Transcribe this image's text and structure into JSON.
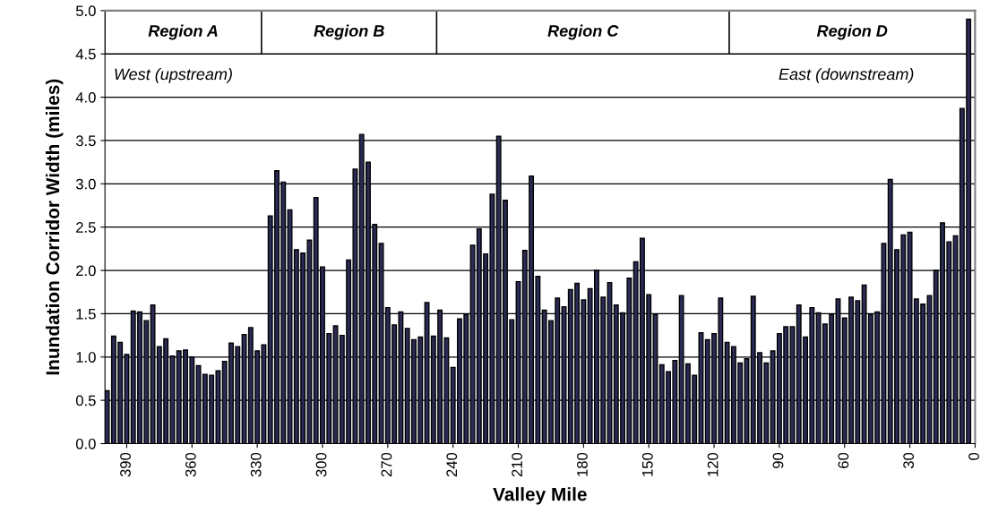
{
  "chart_data": {
    "type": "bar",
    "xlabel": "Valley Mile",
    "ylabel": "Inundation Corridor Width (miles)",
    "color": "#2b2b55",
    "x": [
      399,
      396,
      393,
      390,
      387,
      384,
      381,
      378,
      375,
      372,
      369,
      366,
      363,
      360,
      357,
      354,
      351,
      348,
      345,
      342,
      339,
      336,
      333,
      330,
      327,
      324,
      321,
      318,
      315,
      312,
      309,
      306,
      303,
      300,
      297,
      294,
      291,
      288,
      285,
      282,
      279,
      276,
      273,
      270,
      267,
      264,
      261,
      258,
      255,
      252,
      249,
      246,
      243,
      240,
      237,
      234,
      231,
      228,
      225,
      222,
      219,
      216,
      213,
      210,
      207,
      204,
      201,
      198,
      195,
      192,
      189,
      186,
      183,
      180,
      177,
      174,
      171,
      168,
      165,
      162,
      159,
      156,
      153,
      150,
      147,
      144,
      141,
      138,
      135,
      132,
      129,
      126,
      123,
      120,
      117,
      114,
      111,
      108,
      105,
      102,
      99,
      96,
      93,
      90,
      87,
      84,
      81,
      78,
      75,
      72,
      69,
      66,
      63,
      60,
      57,
      54,
      51,
      48,
      45,
      42,
      39,
      36,
      33,
      30,
      27,
      24,
      21,
      18,
      15,
      12,
      9,
      6,
      3
    ],
    "values": [
      0.61,
      1.24,
      1.17,
      1.03,
      1.53,
      1.52,
      1.42,
      1.6,
      1.12,
      1.21,
      1.01,
      1.07,
      1.08,
      1.0,
      0.9,
      0.8,
      0.79,
      0.84,
      0.95,
      1.16,
      1.12,
      1.26,
      1.34,
      1.07,
      1.14,
      2.63,
      3.15,
      3.02,
      2.7,
      2.24,
      2.2,
      2.35,
      2.84,
      2.04,
      1.27,
      1.36,
      1.25,
      2.12,
      3.17,
      3.57,
      3.25,
      2.53,
      2.31,
      1.57,
      1.37,
      1.52,
      1.33,
      1.2,
      1.23,
      1.63,
      1.24,
      1.54,
      1.22,
      0.88,
      1.44,
      1.49,
      2.29,
      2.48,
      2.19,
      2.88,
      3.55,
      2.81,
      1.43,
      1.87,
      2.23,
      3.09,
      1.93,
      1.54,
      1.42,
      1.68,
      1.58,
      1.78,
      1.85,
      1.66,
      1.79,
      2.0,
      1.69,
      1.86,
      1.6,
      1.51,
      1.91,
      2.1,
      2.37,
      1.72,
      1.49,
      0.91,
      0.83,
      0.96,
      1.71,
      0.92,
      0.79,
      1.28,
      1.2,
      1.27,
      1.68,
      1.17,
      1.12,
      0.93,
      0.98,
      1.7,
      1.05,
      0.93,
      1.07,
      1.27,
      1.35,
      1.35,
      1.6,
      1.23,
      1.57,
      1.51,
      1.38,
      1.49,
      1.67,
      1.45,
      1.69,
      1.65,
      1.83,
      1.49,
      1.52,
      2.31,
      3.05,
      2.24,
      2.41,
      2.44,
      1.67,
      1.61,
      1.71,
      2.0,
      2.55,
      2.33,
      2.4,
      3.87,
      4.9
    ],
    "xlim": [
      400,
      0
    ],
    "xticks": [
      390,
      360,
      330,
      300,
      270,
      240,
      210,
      180,
      150,
      120,
      90,
      60,
      30,
      0
    ],
    "ylim": [
      0,
      5
    ],
    "yticks": [
      {
        "value": 0,
        "label": "0.0"
      },
      {
        "value": 0.5,
        "label": "0.5"
      },
      {
        "value": 1,
        "label": "1.0"
      },
      {
        "value": 1.5,
        "label": "1.5"
      },
      {
        "value": 2,
        "label": "2.0"
      },
      {
        "value": 2.5,
        "label": "2.5"
      },
      {
        "value": 3,
        "label": "3.0"
      },
      {
        "value": 3.5,
        "label": "3.5"
      },
      {
        "value": 4,
        "label": "4.0"
      },
      {
        "value": 4.5,
        "label": "4.5"
      },
      {
        "value": 5,
        "label": "5.0"
      }
    ],
    "grid": "y",
    "bands": [
      {
        "axis": "x",
        "from": 400,
        "to": 328,
        "label": "Region A"
      },
      {
        "axis": "x",
        "from": 328,
        "to": 247.5,
        "label": "Region B"
      },
      {
        "axis": "x",
        "from": 247.5,
        "to": 113,
        "label": "Region C"
      },
      {
        "axis": "x",
        "from": 113,
        "to": 0,
        "label": "Region D"
      }
    ],
    "annotations": [
      "West (upstream)",
      "East (downstream)"
    ]
  }
}
